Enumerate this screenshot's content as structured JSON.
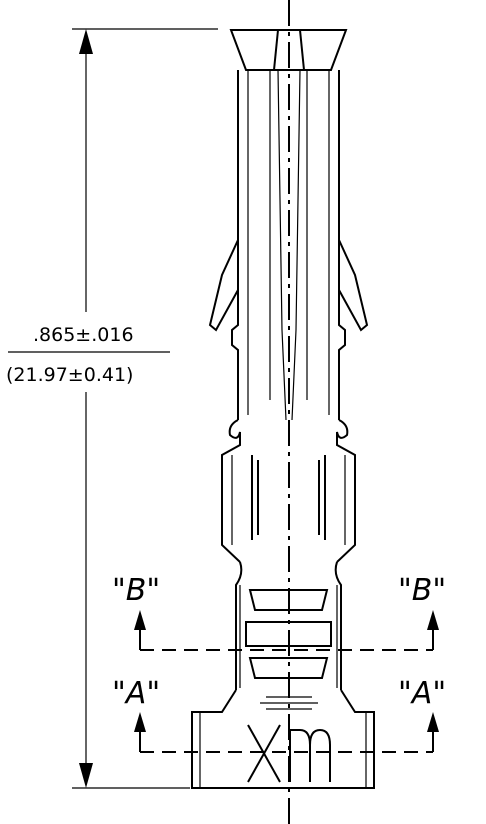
{
  "dimension": {
    "inch": ".865±.016",
    "mm": "(21.97±0.41)"
  },
  "sections": {
    "b_label": "\"B\"",
    "a_label": "\"A\""
  },
  "colors": {
    "line": "#000000",
    "background": "#ffffff"
  }
}
